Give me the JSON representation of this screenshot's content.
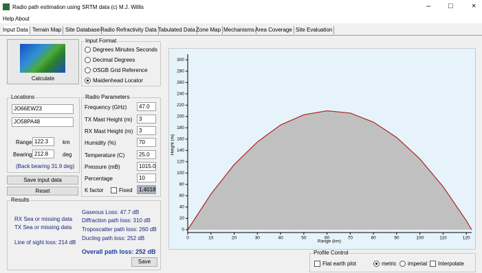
{
  "window": {
    "title": "Radio path estimation using SRTM data (c) M.J. Willis"
  },
  "menu": [
    "Help",
    "About"
  ],
  "tabs": [
    "Input Data",
    "Terrain Map",
    "Site Database",
    "Radio Refractivity Data",
    "Tabulated Data",
    "Zone Map",
    "Mechanisms",
    "Area Coverage",
    "Site Evaluation"
  ],
  "calculate": "Calculate",
  "input_format": {
    "title": "Input Format",
    "options": [
      "Degrees Minutes Seconds",
      "Decimal Degrees",
      "OSGB Grid Reference",
      "Maidenhead Locator"
    ],
    "selected": 3
  },
  "locations": {
    "title": "Locations",
    "location_1": "JO66EW23",
    "location_2": "JO58PA48",
    "range_label": "Range",
    "range": "122.3",
    "range_unit": "km",
    "bearing_label": "Bearing",
    "bearing": "212.8",
    "bearing_unit": "deg",
    "back_bearing": "(Back bearing 31.9 deg)"
  },
  "buttons": {
    "save_input": "Save input data",
    "reset": "Reset",
    "save": "Save"
  },
  "radio_parameters": {
    "title": "Radio Parameters",
    "fields": [
      {
        "label": "Frequency (GHz)",
        "value": "47.0"
      },
      {
        "label": "TX Mast Height (m)",
        "value": "3"
      },
      {
        "label": "RX Mast Height (m)",
        "value": "3"
      },
      {
        "label": "Humidity (%)",
        "value": "70"
      },
      {
        "label": "Temperature (C)",
        "value": "25.0"
      },
      {
        "label": "Pressure (mB)",
        "value": "1015.0"
      },
      {
        "label": "Percentage",
        "value": "10"
      }
    ],
    "k_factor_label": "K factor",
    "fixed_label": "Fixed",
    "k_factor": "1.4018"
  },
  "results": {
    "title": "Results",
    "rx": "RX Sea or missing data",
    "tx": "TX Sea or missing data",
    "line_of_sight": "Line of sight loss: 214 dB",
    "gaseous": "Gaseous Loss: 47.7 dB",
    "diffraction": "Diffraction path loss: 310 dB",
    "troposcatter": "Troposcatter path loss: 260 dB",
    "ducting": "Ducting path loss: 252 dB",
    "overall": "Overall path loss: 252 dB"
  },
  "profile_control": {
    "title": "Profile Control",
    "flat_earth": "Flat earth plot",
    "units": [
      "metric",
      "imperial"
    ],
    "selected": 0,
    "interpolate": "Interpolate"
  },
  "chart_data": {
    "type": "area",
    "x_label": "Range (km)",
    "y_label": "Height (m)",
    "x": [
      0,
      10,
      20,
      30,
      40,
      50,
      60,
      70,
      80,
      90,
      100,
      110,
      120,
      122.3
    ],
    "series": [
      {
        "color": "#c0c0c0",
        "values": [
          0,
          63,
          115,
          155,
          185,
          203,
          210,
          206,
          190,
          163,
          125,
          76,
          16,
          0
        ]
      },
      {
        "color": "#b22222",
        "values": [
          0,
          63,
          115,
          155,
          185,
          203,
          210,
          206,
          190,
          163,
          125,
          76,
          16,
          0
        ]
      }
    ],
    "xlim": [
      0,
      122.3
    ],
    "ylim": [
      -5,
      310
    ],
    "xticks": [
      0,
      10,
      20,
      30,
      40,
      50,
      60,
      70,
      80,
      90,
      100,
      110,
      120
    ],
    "yticks": [
      0,
      20,
      40,
      60,
      80,
      100,
      120,
      140,
      160,
      180,
      200,
      220,
      240,
      260,
      280,
      300
    ],
    "grid": false
  }
}
